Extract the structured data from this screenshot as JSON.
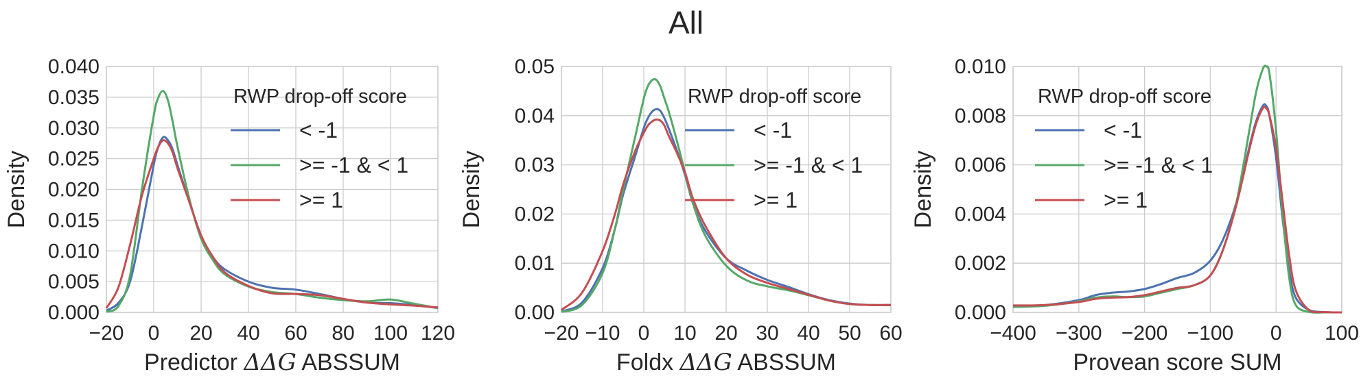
{
  "figure": {
    "title": "All"
  },
  "chart_data": [
    {
      "type": "line",
      "title": "",
      "xlabel_prefix": "Predictor ",
      "xlabel_math": "ΔΔG",
      "xlabel_suffix": " ABSSUM",
      "ylabel": "Density",
      "xlim": [
        -20,
        120
      ],
      "ylim": [
        0,
        0.04
      ],
      "xticks": [
        -20,
        0,
        20,
        40,
        60,
        80,
        100,
        120
      ],
      "xtick_labels": [
        "−20",
        "0",
        "20",
        "40",
        "60",
        "80",
        "100",
        "120"
      ],
      "yticks": [
        0,
        0.005,
        0.01,
        0.015,
        0.02,
        0.025,
        0.03,
        0.035,
        0.04
      ],
      "ytick_labels": [
        "0.000",
        "0.005",
        "0.010",
        "0.015",
        "0.020",
        "0.025",
        "0.030",
        "0.035",
        "0.040"
      ],
      "grid": true,
      "legend": {
        "title": "RWP drop-off score",
        "placement": "upper right"
      },
      "series": [
        {
          "name": "< -1",
          "color": "#4c72b0",
          "x": [
            -20,
            -15,
            -10,
            -5,
            0,
            2,
            4,
            6,
            8,
            10,
            15,
            20,
            25,
            30,
            40,
            50,
            60,
            70,
            80,
            90,
            100,
            110,
            120
          ],
          "y": [
            0.0003,
            0.0015,
            0.005,
            0.014,
            0.024,
            0.027,
            0.0285,
            0.028,
            0.0265,
            0.024,
            0.018,
            0.0125,
            0.009,
            0.007,
            0.005,
            0.004,
            0.0037,
            0.003,
            0.0022,
            0.0016,
            0.0015,
            0.0012,
            0.0007
          ]
        },
        {
          "name": ">= -1 & < 1",
          "color": "#55a868",
          "x": [
            -20,
            -15,
            -10,
            -5,
            0,
            2,
            4,
            6,
            8,
            10,
            15,
            20,
            25,
            30,
            40,
            50,
            60,
            70,
            80,
            90,
            100,
            110,
            120
          ],
          "y": [
            0.0001,
            0.001,
            0.006,
            0.02,
            0.032,
            0.035,
            0.036,
            0.0345,
            0.031,
            0.027,
            0.0185,
            0.012,
            0.0085,
            0.0062,
            0.0042,
            0.0033,
            0.003,
            0.0024,
            0.002,
            0.0018,
            0.0021,
            0.0014,
            0.0007
          ]
        },
        {
          "name": ">= 1",
          "color": "#c44e52",
          "x": [
            -20,
            -15,
            -10,
            -5,
            0,
            2,
            4,
            6,
            8,
            10,
            15,
            20,
            25,
            30,
            40,
            50,
            60,
            70,
            80,
            90,
            100,
            110,
            120
          ],
          "y": [
            0.0007,
            0.004,
            0.011,
            0.019,
            0.025,
            0.027,
            0.028,
            0.0275,
            0.026,
            0.0235,
            0.018,
            0.0125,
            0.009,
            0.0065,
            0.0043,
            0.0031,
            0.003,
            0.0028,
            0.0022,
            0.0016,
            0.0013,
            0.0011,
            0.0008
          ]
        }
      ]
    },
    {
      "type": "line",
      "title": "",
      "xlabel_prefix": "Foldx ",
      "xlabel_math": "ΔΔG",
      "xlabel_suffix": " ABSSUM",
      "ylabel": "Density",
      "xlim": [
        -20,
        60
      ],
      "ylim": [
        0,
        0.05
      ],
      "xticks": [
        -20,
        -10,
        0,
        10,
        20,
        30,
        40,
        50,
        60
      ],
      "xtick_labels": [
        "−20",
        "−10",
        "0",
        "10",
        "20",
        "30",
        "40",
        "50",
        "60"
      ],
      "yticks": [
        0,
        0.01,
        0.02,
        0.03,
        0.04,
        0.05
      ],
      "ytick_labels": [
        "0.00",
        "0.01",
        "0.02",
        "0.03",
        "0.04",
        "0.05"
      ],
      "grid": true,
      "legend": {
        "title": "RWP drop-off score",
        "placement": "upper right"
      },
      "series": [
        {
          "name": "< -1",
          "color": "#4c72b0",
          "x": [
            -20,
            -15,
            -10,
            -7,
            -5,
            -2,
            0,
            1,
            2,
            3,
            4,
            5,
            6,
            8,
            10,
            12,
            15,
            20,
            25,
            30,
            35,
            40,
            45,
            50,
            55,
            60
          ],
          "y": [
            0.0002,
            0.002,
            0.009,
            0.017,
            0.024,
            0.032,
            0.0375,
            0.0395,
            0.0408,
            0.0413,
            0.041,
            0.0395,
            0.0375,
            0.033,
            0.028,
            0.022,
            0.0165,
            0.011,
            0.0085,
            0.0066,
            0.0052,
            0.0037,
            0.0025,
            0.0018,
            0.0015,
            0.0015
          ]
        },
        {
          "name": ">= -1 & < 1",
          "color": "#55a868",
          "x": [
            -20,
            -15,
            -10,
            -7,
            -5,
            -2,
            0,
            1,
            2,
            3,
            4,
            5,
            6,
            8,
            10,
            12,
            15,
            20,
            25,
            30,
            35,
            40,
            45,
            50,
            55,
            60
          ],
          "y": [
            0.0001,
            0.0015,
            0.008,
            0.017,
            0.025,
            0.036,
            0.0435,
            0.046,
            0.0472,
            0.0473,
            0.046,
            0.0435,
            0.041,
            0.035,
            0.0285,
            0.022,
            0.0155,
            0.0095,
            0.0065,
            0.0053,
            0.0045,
            0.0035,
            0.0024,
            0.0017,
            0.0015,
            0.0015
          ]
        },
        {
          "name": ">= 1",
          "color": "#c44e52",
          "x": [
            -20,
            -15,
            -10,
            -7,
            -5,
            -2,
            0,
            1,
            2,
            3,
            4,
            5,
            6,
            8,
            10,
            12,
            15,
            20,
            25,
            30,
            35,
            40,
            45,
            50,
            55,
            60
          ],
          "y": [
            0.0005,
            0.004,
            0.0125,
            0.02,
            0.026,
            0.033,
            0.0365,
            0.038,
            0.0388,
            0.0392,
            0.039,
            0.038,
            0.036,
            0.0325,
            0.0285,
            0.023,
            0.0175,
            0.011,
            0.0077,
            0.006,
            0.0048,
            0.0036,
            0.0024,
            0.0017,
            0.0015,
            0.0015
          ]
        }
      ]
    },
    {
      "type": "line",
      "title": "",
      "xlabel_prefix": "Provean score SUM",
      "xlabel_math": "",
      "xlabel_suffix": "",
      "ylabel": "Density",
      "xlim": [
        -400,
        100
      ],
      "ylim": [
        0,
        0.01
      ],
      "xticks": [
        -400,
        -300,
        -200,
        -100,
        0,
        100
      ],
      "xtick_labels": [
        "−400",
        "−300",
        "−200",
        "−100",
        "0",
        "100"
      ],
      "yticks": [
        0,
        0.002,
        0.004,
        0.006,
        0.008,
        0.01
      ],
      "ytick_labels": [
        "0.000",
        "0.002",
        "0.004",
        "0.006",
        "0.008",
        "0.010"
      ],
      "grid": true,
      "legend": {
        "title": "RWP drop-off score",
        "placement": "upper left"
      },
      "series": [
        {
          "name": "< -1",
          "color": "#4c72b0",
          "x": [
            -400,
            -350,
            -300,
            -275,
            -250,
            -225,
            -200,
            -175,
            -150,
            -125,
            -100,
            -80,
            -60,
            -40,
            -30,
            -20,
            -15,
            -10,
            0,
            10,
            20,
            30,
            50,
            75,
            100
          ],
          "y": [
            0.00025,
            0.0003,
            0.0005,
            0.0007,
            0.0008,
            0.00085,
            0.00095,
            0.00115,
            0.0014,
            0.0016,
            0.0021,
            0.003,
            0.0045,
            0.0068,
            0.0078,
            0.0084,
            0.0084,
            0.008,
            0.0063,
            0.0038,
            0.0017,
            0.0006,
            0.0001,
            1e-05,
            0
          ]
        },
        {
          "name": ">= -1 & < 1",
          "color": "#55a868",
          "x": [
            -400,
            -350,
            -300,
            -275,
            -250,
            -225,
            -200,
            -175,
            -150,
            -125,
            -100,
            -80,
            -60,
            -40,
            -30,
            -20,
            -15,
            -10,
            0,
            10,
            20,
            30,
            50,
            75,
            100
          ],
          "y": [
            0.00022,
            0.00027,
            0.00045,
            0.0006,
            0.00065,
            0.00062,
            0.00065,
            0.0008,
            0.00095,
            0.0011,
            0.0015,
            0.0026,
            0.0045,
            0.0075,
            0.009,
            0.0099,
            0.01,
            0.0097,
            0.0074,
            0.004,
            0.0014,
            0.0003,
            2e-05,
            0,
            0
          ]
        },
        {
          "name": ">= 1",
          "color": "#c44e52",
          "x": [
            -400,
            -350,
            -300,
            -275,
            -250,
            -225,
            -200,
            -175,
            -150,
            -125,
            -100,
            -80,
            -60,
            -40,
            -30,
            -20,
            -15,
            -10,
            0,
            10,
            20,
            30,
            50,
            75,
            100
          ],
          "y": [
            0.00028,
            0.0003,
            0.00042,
            0.00055,
            0.0006,
            0.00062,
            0.0007,
            0.00085,
            0.001,
            0.0011,
            0.0015,
            0.0026,
            0.0044,
            0.0067,
            0.0077,
            0.0083,
            0.0083,
            0.008,
            0.0067,
            0.0045,
            0.0023,
            0.0009,
            0.0001,
            1e-05,
            0
          ]
        }
      ]
    }
  ]
}
